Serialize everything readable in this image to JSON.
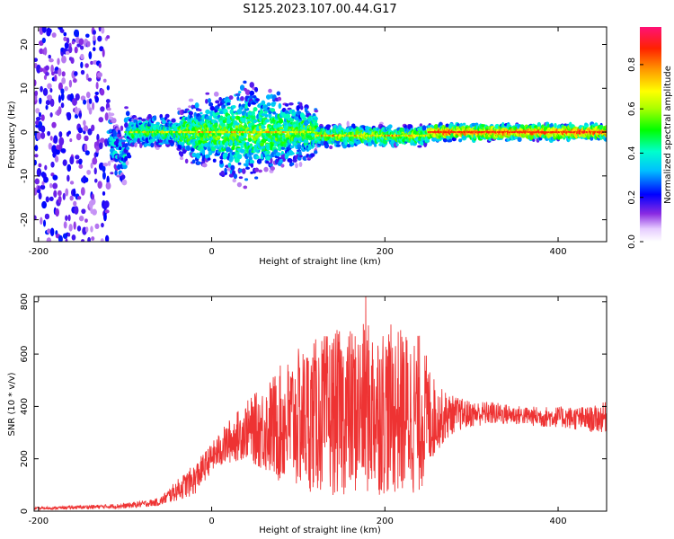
{
  "figure": {
    "title": "S125.2023.107.00.44.G17"
  },
  "chart_data": [
    {
      "type": "heatmap",
      "name": "spectrogram",
      "xlabel": "Height of straight line (km)",
      "ylabel": "Frequency (Hz)",
      "xlim": [
        -205,
        456
      ],
      "ylim": [
        -25,
        24
      ],
      "xticks": [
        -200,
        0,
        200,
        400
      ],
      "yticks": [
        -20,
        -10,
        0,
        10,
        20
      ],
      "colorbar": {
        "label": "Normalized spectral amplitude",
        "range": [
          0,
          0.97
        ],
        "ticks": [
          0.0,
          0.2,
          0.4,
          0.6,
          0.8
        ],
        "tick_labels": [
          "0.0",
          "0.2",
          "0.4",
          "0.6",
          "0.8"
        ],
        "colormap": "rainbow-white-to-red"
      },
      "features": {
        "noise_region_x": [
          -205,
          -120
        ],
        "narrow_line_start_x": 120,
        "peak_frequency_hz": 0,
        "broad_region_x": [
          -40,
          120
        ]
      }
    },
    {
      "type": "line",
      "name": "snr",
      "xlabel": "Height of straight line (km)",
      "ylabel": "SNR (10 * v/v)",
      "xlim": [
        -205,
        456
      ],
      "ylim": [
        0,
        820
      ],
      "xticks": [
        -200,
        0,
        200,
        400
      ],
      "yticks": [
        0,
        200,
        400,
        600,
        800
      ],
      "series": [
        {
          "color": "#ee3333",
          "envelope_x": [
            -205,
            -150,
            -100,
            -60,
            -40,
            -20,
            0,
            20,
            40,
            60,
            80,
            100,
            120,
            140,
            160,
            180,
            200,
            220,
            240,
            260,
            280,
            300,
            320,
            340,
            360,
            380,
            400,
            420,
            440,
            456
          ],
          "envelope_low": [
            5,
            8,
            10,
            20,
            40,
            60,
            150,
            180,
            200,
            150,
            100,
            80,
            70,
            60,
            60,
            60,
            60,
            60,
            60,
            230,
            300,
            320,
            330,
            330,
            330,
            320,
            320,
            310,
            300,
            300
          ],
          "envelope_high": [
            15,
            22,
            30,
            50,
            120,
            180,
            260,
            350,
            420,
            480,
            560,
            620,
            660,
            690,
            700,
            720,
            720,
            700,
            680,
            480,
            440,
            420,
            420,
            410,
            400,
            400,
            400,
            400,
            400,
            420
          ],
          "peak": {
            "x": 178,
            "y": 820
          }
        }
      ]
    }
  ]
}
